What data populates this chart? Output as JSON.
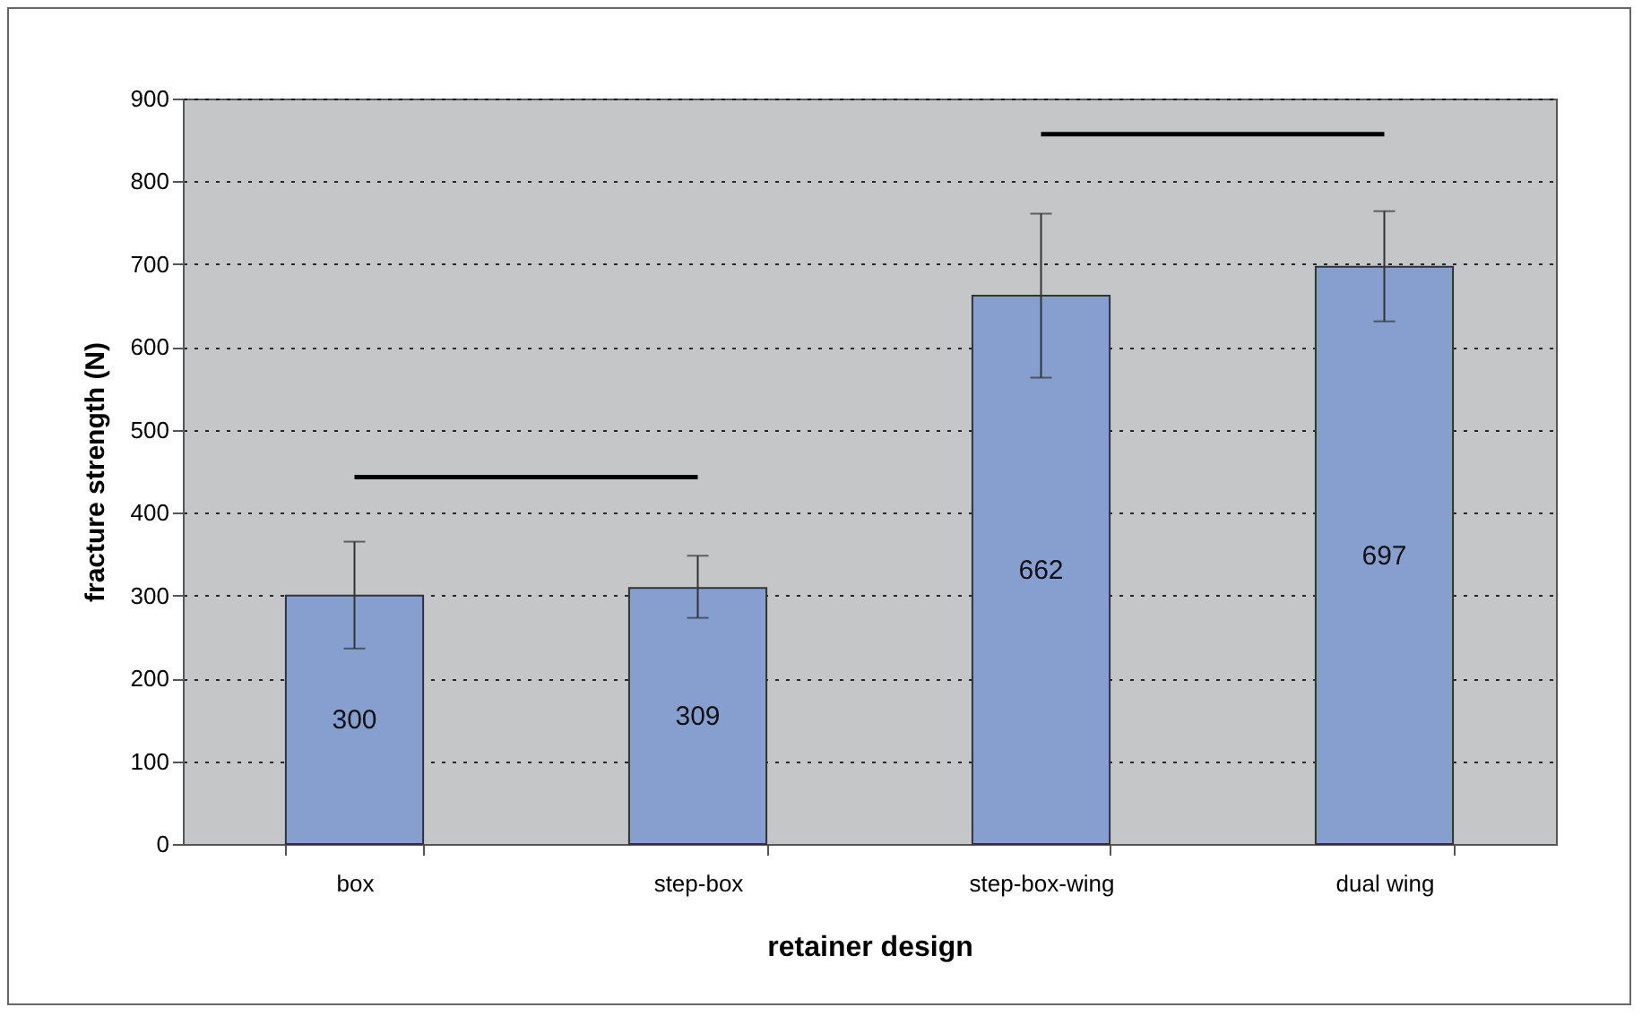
{
  "chart_data": {
    "type": "bar",
    "xlabel": "retainer design",
    "ylabel": "fracture strength (N)",
    "categories": [
      "box",
      "step-box",
      "step-box-wing",
      "dual wing"
    ],
    "series": [
      {
        "color": "#879fcf",
        "values": [
          300,
          309,
          662,
          697
        ],
        "value_labels": [
          "300",
          "309",
          "662",
          "697"
        ],
        "errors": [
          [
            236,
            365
          ],
          [
            273,
            348
          ],
          [
            563,
            761
          ],
          [
            631,
            764
          ]
        ]
      },
      {
        "type": "line",
        "color": "#000000",
        "x": [
          "box",
          "step-box"
        ],
        "values": [
          443,
          443
        ]
      },
      {
        "type": "line",
        "color": "#000000",
        "x": [
          "step-box-wing",
          "dual wing"
        ],
        "values": [
          857,
          857
        ]
      }
    ],
    "ylim": [
      0,
      900
    ],
    "yticks": [
      0,
      100,
      200,
      300,
      400,
      500,
      600,
      700,
      800,
      900
    ],
    "grid": "y",
    "line_style": "solid",
    "marker": "none"
  }
}
